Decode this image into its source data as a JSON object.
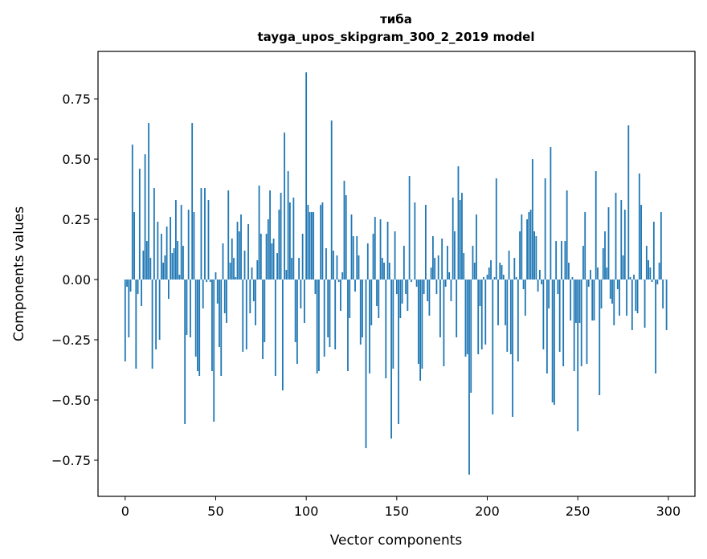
{
  "chart_data": {
    "type": "bar",
    "title": "тиба",
    "subtitle": "tayga_upos_skipgram_300_2_2019 model",
    "xlabel": "Vector components",
    "ylabel": "Components values",
    "xlim": [
      -15,
      314.7
    ],
    "ylim": [
      -0.9,
      0.947
    ],
    "xticks": [
      0,
      50,
      100,
      150,
      200,
      250,
      300
    ],
    "xtick_labels": [
      "0",
      "50",
      "100",
      "150",
      "200",
      "250",
      "300"
    ],
    "yticks": [
      -0.75,
      -0.5,
      -0.25,
      0,
      0.25,
      0.5,
      0.75
    ],
    "ytick_labels": [
      "−0.75",
      "−0.50",
      "−0.25",
      "0.00",
      "0.25",
      "0.50",
      "0.75"
    ],
    "grid": false,
    "bar_color": "#1f77b4",
    "values": [
      -0.34,
      -0.03,
      -0.24,
      -0.05,
      0.56,
      0.28,
      -0.37,
      -0.06,
      0.46,
      -0.11,
      0.12,
      0.52,
      0.16,
      0.65,
      0.09,
      -0.37,
      0.38,
      -0.29,
      0.24,
      -0.25,
      0.19,
      0.07,
      0.1,
      0.22,
      -0.08,
      0.26,
      0.11,
      0.13,
      0.33,
      0.16,
      0.02,
      0.31,
      0.14,
      -0.6,
      -0.23,
      0.29,
      -0.24,
      0.65,
      0.28,
      -0.32,
      -0.38,
      -0.4,
      0.38,
      -0.12,
      0.38,
      -0.01,
      0.33,
      -0.01,
      -0.38,
      -0.59,
      0.03,
      -0.1,
      -0.28,
      -0.4,
      0.15,
      -0.14,
      -0.18,
      0.37,
      0.07,
      0.17,
      0.09,
      0.01,
      0.24,
      0.2,
      0.27,
      -0.3,
      0.12,
      -0.29,
      0.23,
      -0.14,
      0.05,
      -0.09,
      -0.19,
      0.08,
      0.39,
      0.19,
      -0.33,
      -0.26,
      0.19,
      0.25,
      0.37,
      0.15,
      0.17,
      -0.4,
      0.11,
      0.29,
      0.36,
      -0.46,
      0.61,
      0.04,
      0.45,
      0.32,
      0.09,
      0.34,
      -0.26,
      -0.35,
      0.09,
      -0.12,
      0.19,
      -0.18,
      0.86,
      0.31,
      0.28,
      0.28,
      0.28,
      -0.06,
      -0.39,
      -0.38,
      0.31,
      0.32,
      -0.32,
      0.13,
      -0.24,
      -0.28,
      0.66,
      0.12,
      -0.29,
      0.1,
      -0.01,
      -0.13,
      0.03,
      0.41,
      0.35,
      -0.38,
      -0.16,
      0.27,
      0.18,
      -0.05,
      0.18,
      0.1,
      -0.27,
      -0.24,
      0.0,
      -0.7,
      0.15,
      -0.39,
      -0.19,
      0.19,
      0.26,
      -0.11,
      -0.16,
      0.25,
      0.09,
      0.07,
      -0.41,
      0.24,
      0.07,
      -0.66,
      -0.37,
      0.2,
      -0.06,
      -0.6,
      -0.16,
      -0.1,
      0.14,
      -0.06,
      -0.13,
      0.43,
      -0.01,
      0.0,
      0.32,
      -0.03,
      -0.35,
      -0.42,
      -0.37,
      -0.06,
      0.31,
      -0.09,
      -0.15,
      0.05,
      0.18,
      0.09,
      -0.06,
      0.1,
      -0.24,
      0.17,
      -0.36,
      -0.03,
      0.14,
      0.03,
      -0.09,
      0.34,
      0.2,
      -0.24,
      0.47,
      0.33,
      0.36,
      0.11,
      -0.32,
      -0.31,
      -0.81,
      -0.47,
      0.14,
      0.07,
      0.27,
      -0.31,
      -0.11,
      -0.29,
      0.01,
      -0.27,
      0.02,
      0.05,
      0.08,
      -0.56,
      0.01,
      0.42,
      -0.19,
      0.07,
      0.06,
      0.02,
      -0.19,
      -0.3,
      0.12,
      -0.31,
      -0.57,
      0.09,
      0.01,
      -0.34,
      0.2,
      0.27,
      -0.04,
      -0.15,
      0.25,
      0.28,
      0.29,
      0.5,
      0.2,
      0.18,
      -0.05,
      0.04,
      -0.02,
      -0.29,
      0.42,
      -0.39,
      -0.12,
      0.55,
      -0.51,
      -0.52,
      0.16,
      -0.06,
      -0.3,
      0.16,
      -0.36,
      0.16,
      0.37,
      0.07,
      -0.17,
      0.01,
      -0.38,
      -0.18,
      -0.63,
      -0.18,
      -0.36,
      0.14,
      0.28,
      -0.35,
      -0.03,
      0.04,
      -0.17,
      -0.17,
      0.45,
      0.05,
      -0.48,
      -0.12,
      0.13,
      0.2,
      0.05,
      0.3,
      -0.08,
      -0.1,
      -0.19,
      0.36,
      -0.04,
      -0.15,
      0.33,
      0.1,
      0.29,
      -0.15,
      0.64,
      0.01,
      -0.21,
      0.02,
      -0.13,
      -0.14,
      0.44,
      0.31,
      0.0,
      -0.2,
      0.14,
      0.08,
      0.05,
      -0.01,
      0.24,
      -0.39,
      -0.02,
      0.07,
      0.28,
      -0.12,
      0.0,
      -0.21
    ]
  }
}
